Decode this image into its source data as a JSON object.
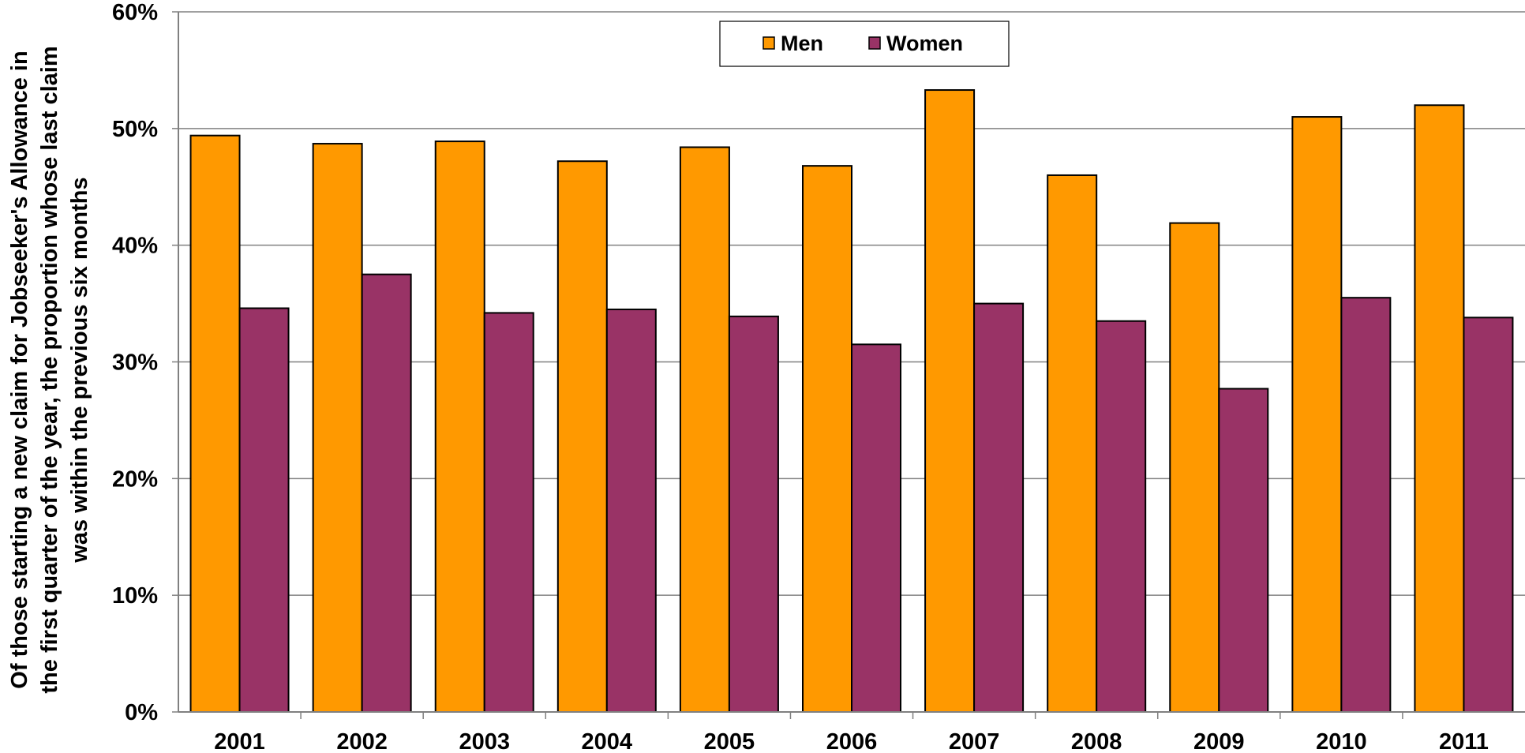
{
  "chart_data": {
    "type": "bar",
    "title": "",
    "xlabel": "",
    "ylabel_lines": [
      "Of those starting a new claim for Jobseeker's Allowance in",
      "the first quarter of the year, the proportion whose last claim",
      "was within the previous six months"
    ],
    "categories": [
      "2001",
      "2002",
      "2003",
      "2004",
      "2005",
      "2006",
      "2007",
      "2008",
      "2009",
      "2010",
      "2011"
    ],
    "series": [
      {
        "name": "Men",
        "color": "#FF9900",
        "values": [
          49.4,
          48.7,
          48.9,
          47.2,
          48.4,
          46.8,
          53.3,
          46.0,
          41.9,
          51.0,
          52.0
        ]
      },
      {
        "name": "Women",
        "color": "#993366",
        "values": [
          34.6,
          37.5,
          34.2,
          34.5,
          33.9,
          31.5,
          35.0,
          33.5,
          27.7,
          35.5,
          33.8
        ]
      }
    ],
    "ylim": [
      0,
      60
    ],
    "yticks": [
      0,
      10,
      20,
      30,
      40,
      50,
      60
    ],
    "ytick_labels": [
      "0%",
      "10%",
      "20%",
      "30%",
      "40%",
      "50%",
      "60%"
    ],
    "grid": true,
    "legend_position": "top-center",
    "axis_color": "#808080",
    "gridline_color": "#808080",
    "bar_edge_color": "#000000"
  }
}
